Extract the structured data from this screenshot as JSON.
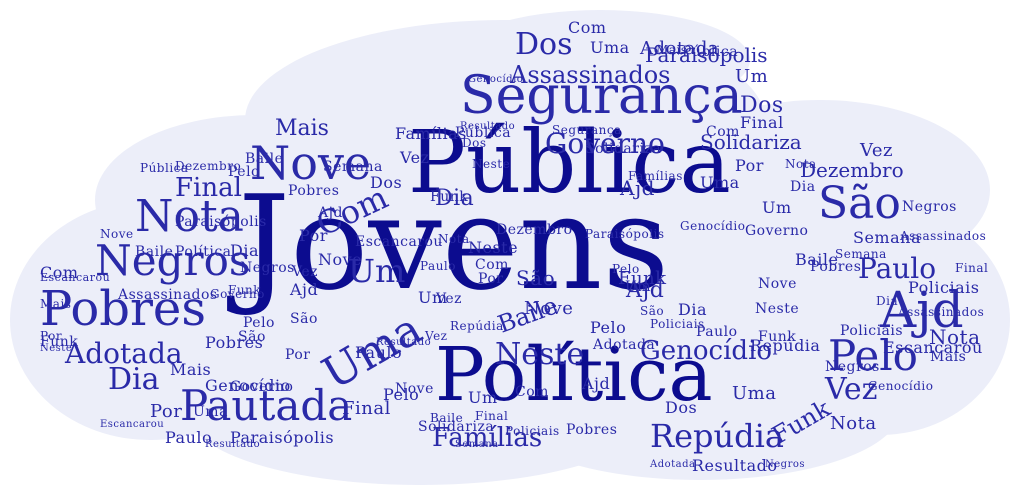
{
  "colors": {
    "cloud_fill": "#eceef9",
    "ink_dark": "#0c0c8f",
    "ink_mid": "#2a2aa8",
    "ink_light": "#4f4fb5"
  },
  "words": {
    "jovens": "Jovens",
    "publica": "Pública",
    "politica": "Política",
    "seguranca": "Segurança",
    "pobres": "Pobres",
    "negros": "Negros",
    "nota": "Nota",
    "nove": "Nove",
    "pautada": "Pautada",
    "uma": "Uma",
    "ajd": "Ajd",
    "pelo": "Pelo",
    "sao": "São",
    "assassinados": "Assassinados",
    "dos": "Dos",
    "governo": "Governo",
    "paulo": "Paulo",
    "adotada": "Adotada",
    "dia": "Dia",
    "com": "Com",
    "por": "Por",
    "neste": "Neste",
    "final": "Final",
    "repudia": "Repúdia",
    "vez": "Vez",
    "genocidio": "Genocídio",
    "familias": "Famílias",
    "paraisopolis": "Paraisópolis",
    "solidariza": "Solidariza",
    "dezembro": "Dezembro",
    "mais": "Mais",
    "baile": "Baile",
    "funk": "Funk",
    "semana": "Semana",
    "policiais": "Policiais",
    "escancarou": "Escancarou",
    "resultado": "Resultado",
    "um": "Um"
  }
}
